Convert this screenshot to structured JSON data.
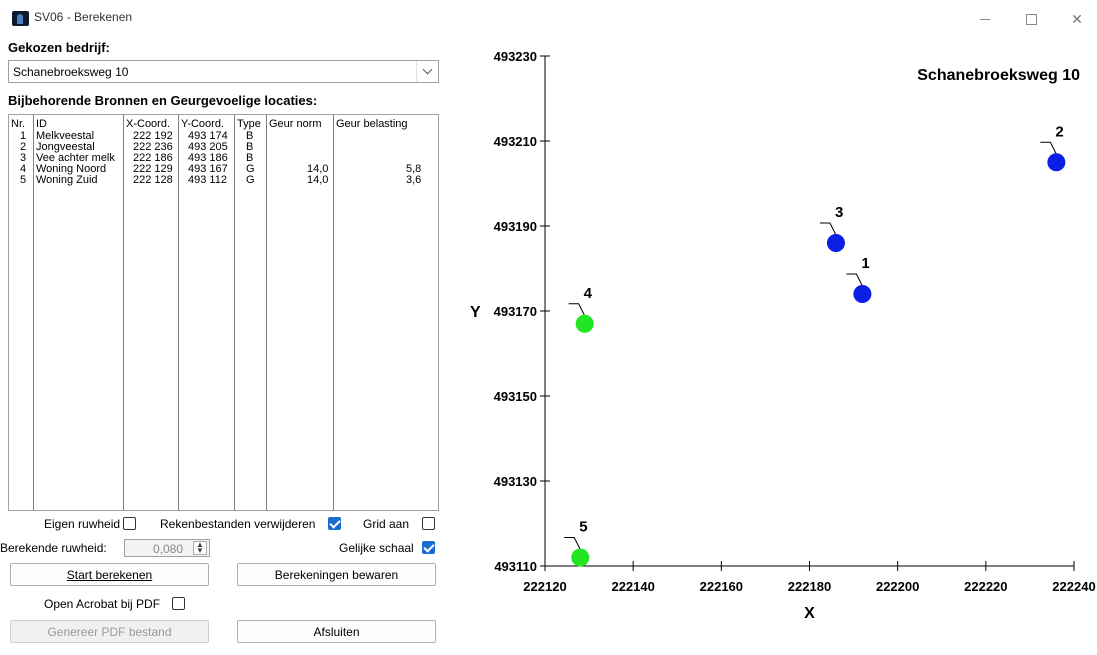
{
  "window": {
    "title": "SV06 - Berekenen"
  },
  "company": {
    "label": "Gekozen bedrijf:",
    "selected": "Schanebroeksweg 10"
  },
  "sources": {
    "label": "Bijbehorende Bronnen en Geurgevoelige locaties:",
    "columns": [
      "Nr.",
      "ID",
      "X-Coord.",
      "Y-Coord.",
      "Type",
      "Geur norm",
      "Geur belasting"
    ],
    "rows": [
      {
        "nr": "1",
        "id": "Melkveestal",
        "x": "222 192",
        "y": "493 174",
        "type": "B",
        "norm": "",
        "belasting": ""
      },
      {
        "nr": "2",
        "id": "Jongveestal",
        "x": "222 236",
        "y": "493 205",
        "type": "B",
        "norm": "",
        "belasting": ""
      },
      {
        "nr": "3",
        "id": "Vee achter melk",
        "x": "222 186",
        "y": "493 186",
        "type": "B",
        "norm": "",
        "belasting": ""
      },
      {
        "nr": "4",
        "id": "Woning Noord",
        "x": "222 129",
        "y": "493 167",
        "type": "G",
        "norm": "14,0",
        "belasting": "5,8"
      },
      {
        "nr": "5",
        "id": "Woning Zuid",
        "x": "222 128",
        "y": "493 112",
        "type": "G",
        "norm": "14,0",
        "belasting": "3,6"
      }
    ]
  },
  "options": {
    "eigen_ruwheid": {
      "label": "Eigen ruwheid",
      "checked": false
    },
    "rekenbestanden": {
      "label": "Rekenbestanden verwijderen",
      "checked": true
    },
    "grid": {
      "label": "Grid aan",
      "checked": false
    },
    "ruwheid": {
      "label": "Berekende ruwheid:",
      "value": "0,080"
    },
    "gelijke_schaal": {
      "label": "Gelijke schaal",
      "checked": true
    },
    "open_acrobat": {
      "label": "Open Acrobat bij PDF",
      "checked": false
    }
  },
  "buttons": {
    "start": "Start berekenen",
    "bewaren": "Berekeningen bewaren",
    "pdf": "Genereer PDF bestand",
    "afsluiten": "Afsluiten"
  },
  "chart_data": {
    "type": "scatter",
    "title": "Schanebroeksweg 10",
    "xlabel": "X",
    "ylabel": "Y",
    "xlim": [
      222120,
      222240
    ],
    "ylim": [
      493110,
      493230
    ],
    "xticks": [
      222120,
      222140,
      222160,
      222180,
      222200,
      222220,
      222240
    ],
    "yticks": [
      493110,
      493130,
      493150,
      493170,
      493190,
      493210,
      493230
    ],
    "grid": false,
    "points": [
      {
        "label": "1",
        "x": 222192,
        "y": 493174,
        "color": "#0a1ee6"
      },
      {
        "label": "2",
        "x": 222236,
        "y": 493205,
        "color": "#0a1ee6"
      },
      {
        "label": "3",
        "x": 222186,
        "y": 493186,
        "color": "#0a1ee6"
      },
      {
        "label": "4",
        "x": 222129,
        "y": 493167,
        "color": "#22e622"
      },
      {
        "label": "5",
        "x": 222128,
        "y": 493112,
        "color": "#22e622"
      }
    ]
  }
}
